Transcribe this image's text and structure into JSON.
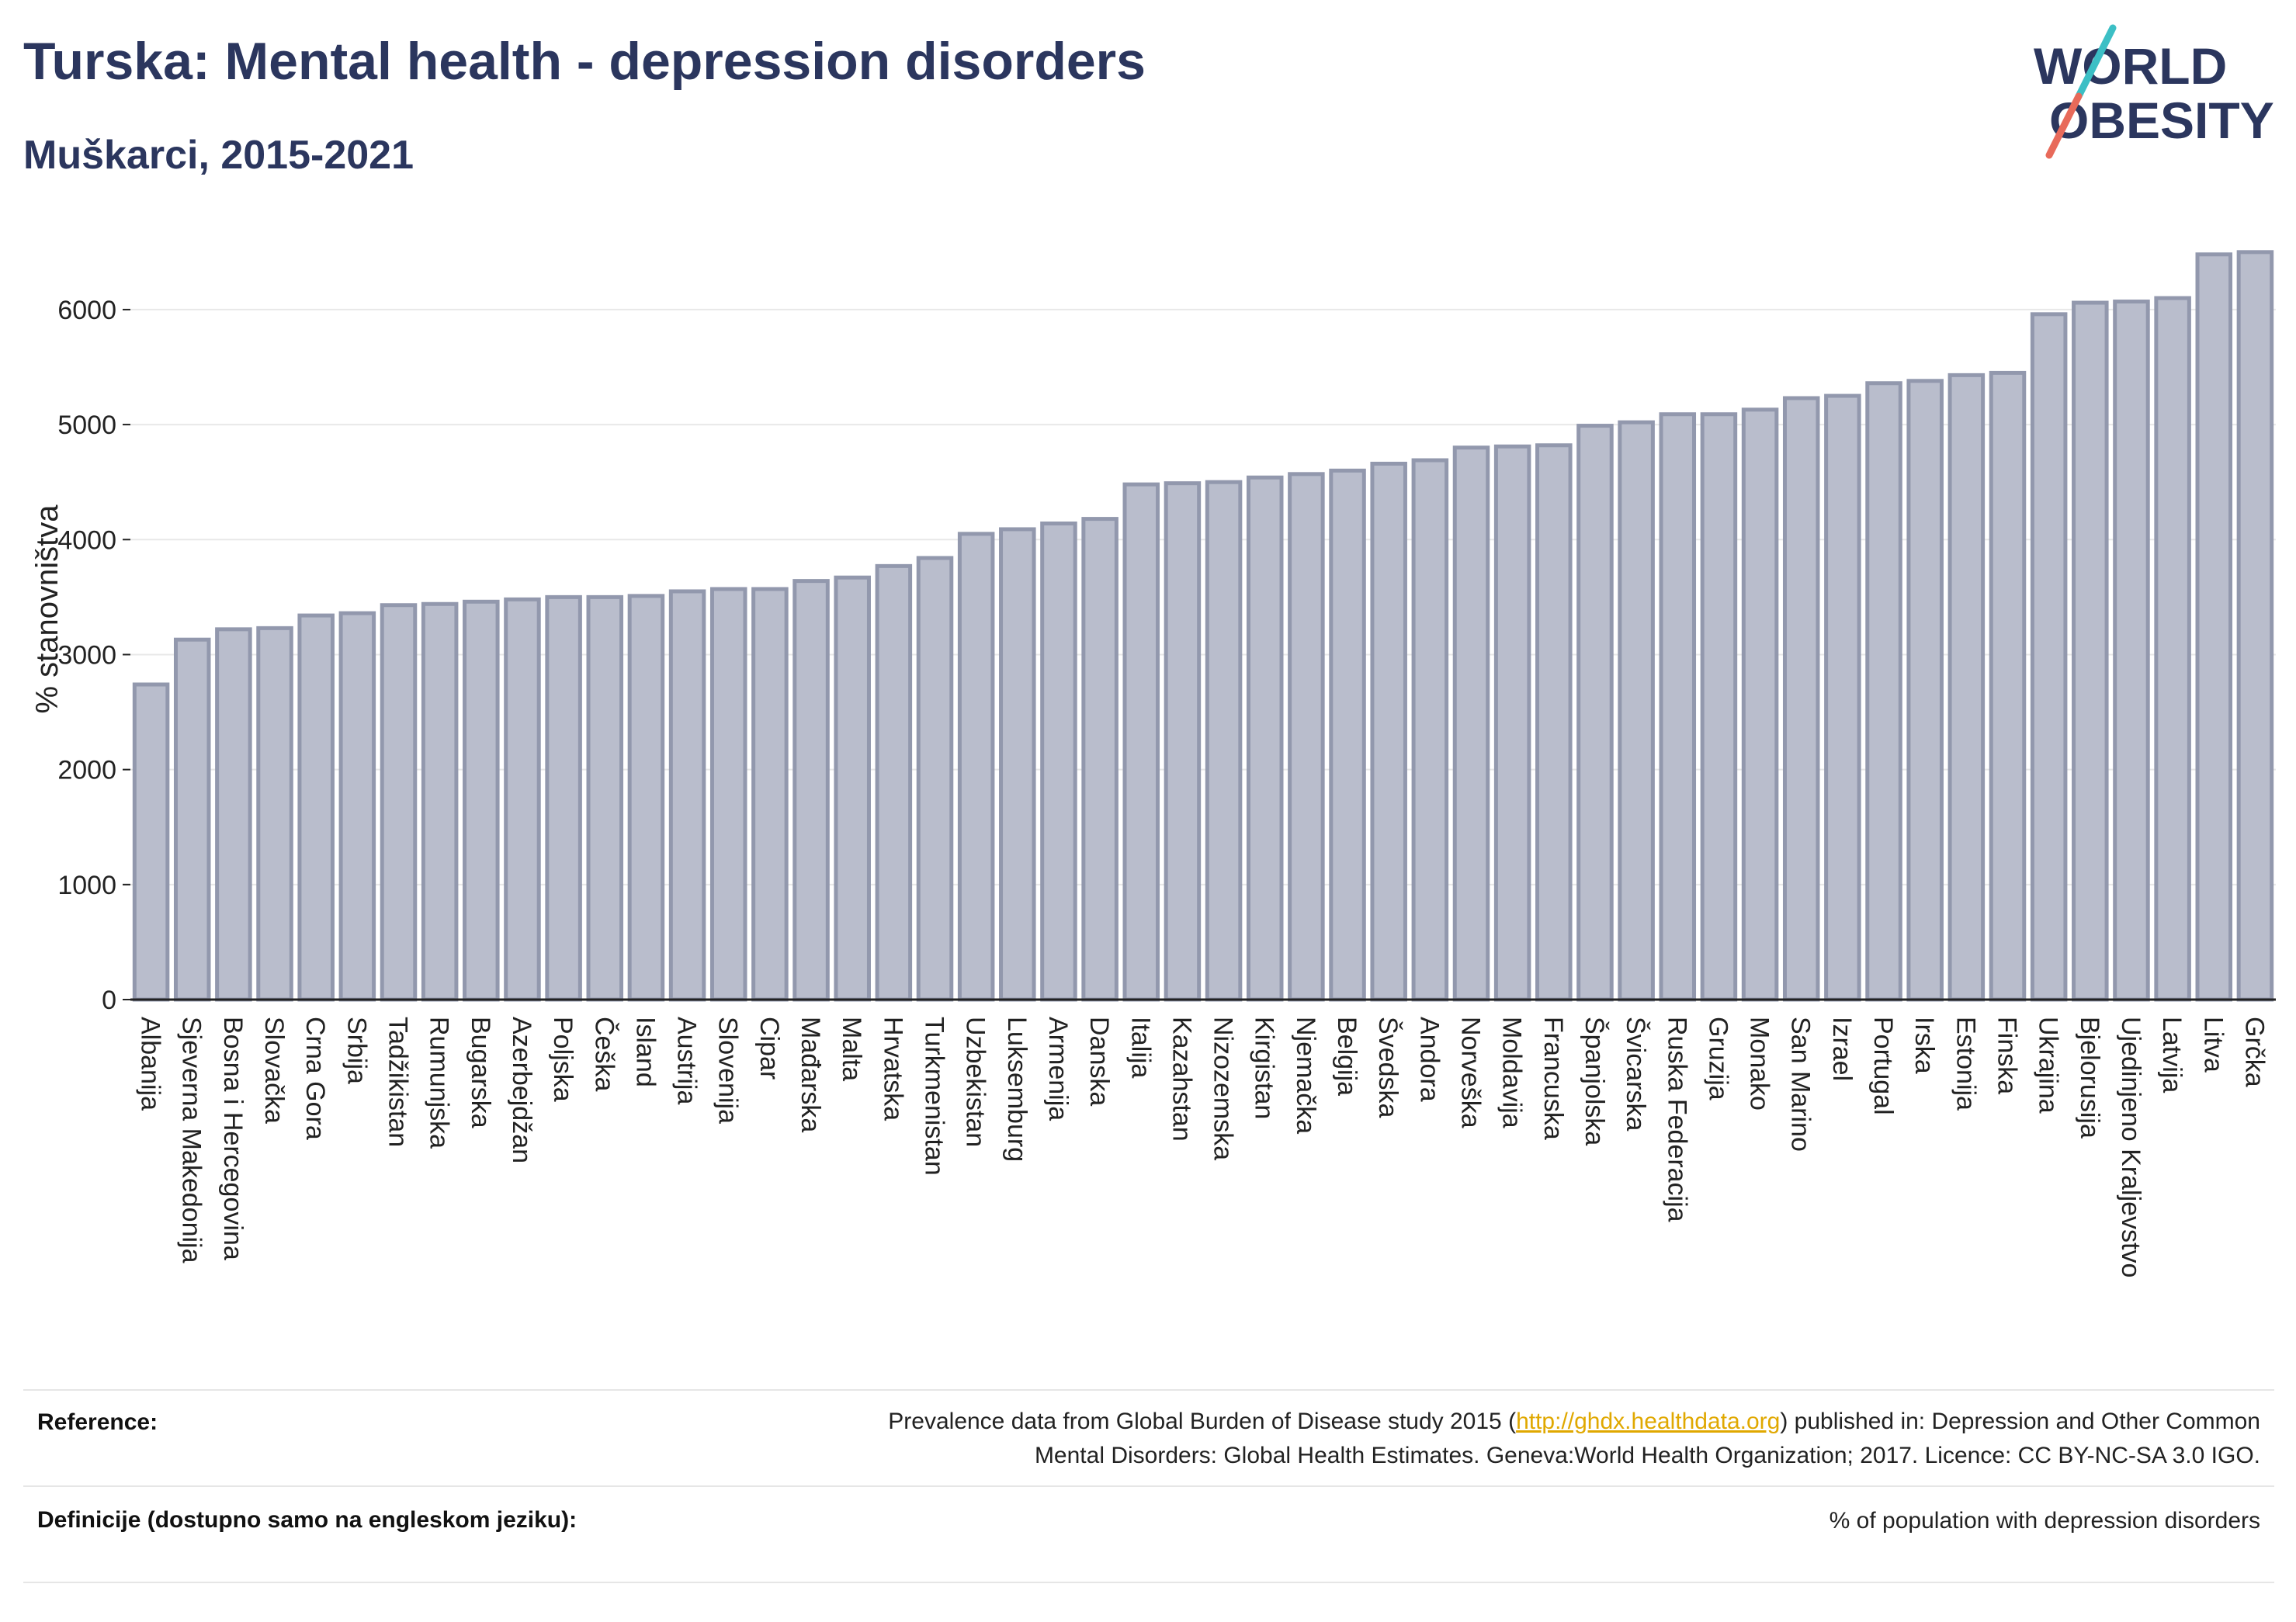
{
  "header": {
    "title": "Turska: Mental health - depression disorders",
    "subtitle": "Muškarci, 2015-2021"
  },
  "logo": {
    "line1": "WORLD",
    "line2": "OBESITY"
  },
  "chart_data": {
    "type": "bar",
    "ylabel": "% stanovništva",
    "ylim": [
      0,
      6600
    ],
    "yticks": [
      0,
      1000,
      2000,
      3000,
      4000,
      5000,
      6000
    ],
    "grid": true,
    "bar_color": "#b9bdcc",
    "bar_edge_color": "#9298ad",
    "categories": [
      "Albanija",
      "Sjeverna Makedonija",
      "Bosna i Hercegovina",
      "Slovačka",
      "Crna Gora",
      "Srbija",
      "Tadžikistan",
      "Rumunjska",
      "Bugarska",
      "Azerbejdžan",
      "Poljska",
      "Češka",
      "Island",
      "Austrija",
      "Slovenija",
      "Cipar",
      "Mađarska",
      "Malta",
      "Hrvatska",
      "Turkmenistan",
      "Uzbekistan",
      "Luksemburg",
      "Armenija",
      "Danska",
      "Italija",
      "Kazahstan",
      "Nizozemska",
      "Kirgistan",
      "Njemačka",
      "Belgija",
      "Švedska",
      "Andora",
      "Norveška",
      "Moldavija",
      "Francuska",
      "Španjolska",
      "Švicarska",
      "Ruska Federacija",
      "Gruzija",
      "Monako",
      "San Marino",
      "Izrael",
      "Portugal",
      "Irska",
      "Estonija",
      "Finska",
      "Ukrajina",
      "Bjelorusija",
      "Ujedinjeno Kraljevstvo",
      "Latvija",
      "Litva",
      "Grčka"
    ],
    "values": [
      2740,
      3130,
      3220,
      3230,
      3340,
      3360,
      3430,
      3440,
      3460,
      3480,
      3500,
      3500,
      3510,
      3550,
      3570,
      3570,
      3640,
      3670,
      3770,
      3840,
      4050,
      4090,
      4140,
      4180,
      4480,
      4490,
      4500,
      4540,
      4570,
      4600,
      4660,
      4690,
      4800,
      4810,
      4820,
      4990,
      5020,
      5090,
      5090,
      5130,
      5230,
      5250,
      5360,
      5380,
      5430,
      5450,
      5960,
      6060,
      6070,
      6100,
      6480,
      6500
    ]
  },
  "footer": {
    "reference_label": "Reference:",
    "reference_text_before": "Prevalence data from Global Burden of Disease study 2015 (",
    "reference_link": "http://ghdx.healthdata.org",
    "reference_text_after": ") published in: Depression and Other Common",
    "reference_text_line2": "Mental Disorders: Global Health Estimates. Geneva:World Health Organization; 2017. Licence: CC BY-NC-SA 3.0 IGO.",
    "definition_label": "Definicije (dostupno samo na engleskom jeziku):",
    "definition_text": "% of population with depression disorders"
  }
}
